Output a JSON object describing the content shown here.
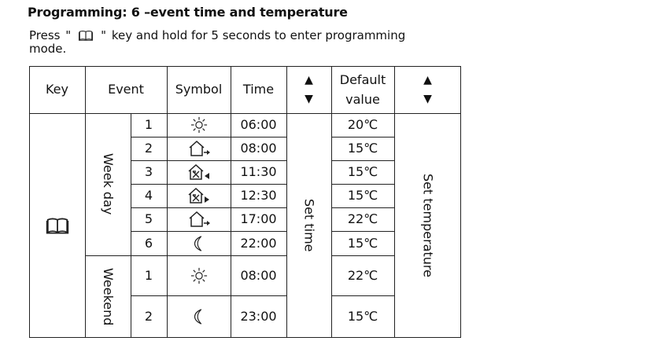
{
  "title": "Programming: 6 –event time and temperature",
  "intro": {
    "before": "Press",
    "quote_open": "\"",
    "key_icon": "book-icon",
    "quote_close": "\"",
    "after": "key and hold for 5 seconds to enter programming",
    "line2": "mode."
  },
  "table": {
    "headers": {
      "key": "Key",
      "event": "Event",
      "symbol": "Symbol",
      "time": "Time",
      "arrow_up": "▲",
      "arrow_down": "▼",
      "default_line1": "Default",
      "default_line2": "value",
      "arrow_up_2": "▲",
      "arrow_down_2": "▼"
    },
    "key_icon": "book-icon",
    "groups": {
      "weekday": "Week day",
      "weekend": "Weekend"
    },
    "set_time": "Set time",
    "set_temperature": "Set temperature",
    "rows": [
      {
        "num": "1",
        "symbol": "sun-icon",
        "time": "06:00",
        "temp": "20℃"
      },
      {
        "num": "2",
        "symbol": "house-leave-icon",
        "time": "08:00",
        "temp": "15℃"
      },
      {
        "num": "3",
        "symbol": "house-lunch-leave-icon",
        "time": "11:30",
        "temp": "15℃"
      },
      {
        "num": "4",
        "symbol": "house-lunch-return-icon",
        "time": "12:30",
        "temp": "15℃"
      },
      {
        "num": "5",
        "symbol": "house-leave-icon",
        "time": "17:00",
        "temp": "22℃"
      },
      {
        "num": "6",
        "symbol": "moon-icon",
        "time": "22:00",
        "temp": "15℃"
      },
      {
        "num": "1",
        "symbol": "sun-icon",
        "time": "08:00",
        "temp": "22℃"
      },
      {
        "num": "2",
        "symbol": "moon-icon",
        "time": "23:00",
        "temp": "15℃"
      }
    ]
  }
}
